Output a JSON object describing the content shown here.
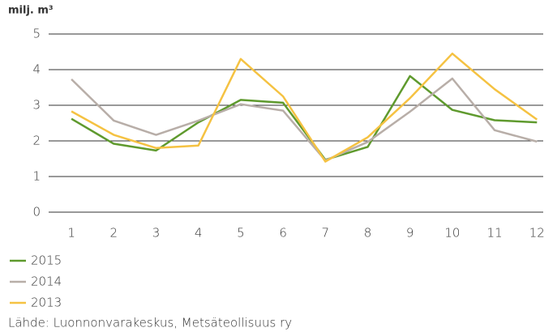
{
  "chart_data": {
    "type": "line",
    "ylabel": "milj. m³",
    "categories": [
      "1",
      "2",
      "3",
      "4",
      "5",
      "6",
      "7",
      "8",
      "9",
      "10",
      "11",
      "12"
    ],
    "series": [
      {
        "name": "2015",
        "color": "#5f9a2e",
        "values": [
          2.62,
          1.92,
          1.73,
          2.52,
          3.15,
          3.07,
          1.47,
          1.83,
          3.82,
          2.87,
          2.58,
          2.52
        ]
      },
      {
        "name": "2014",
        "color": "#b8aea8",
        "values": [
          3.73,
          2.57,
          2.17,
          2.57,
          3.03,
          2.85,
          1.45,
          1.97,
          2.82,
          3.75,
          2.3,
          1.98
        ]
      },
      {
        "name": "2013",
        "color": "#f5c242",
        "values": [
          2.83,
          2.17,
          1.8,
          1.87,
          4.3,
          3.25,
          1.42,
          2.1,
          3.2,
          4.45,
          3.45,
          2.6
        ]
      }
    ],
    "ylim": [
      0,
      5
    ],
    "yticks": [
      0,
      1,
      2,
      3,
      4,
      5
    ],
    "grid": true,
    "source": "Lähde: Luonnonvarakeskus, Metsäteollisuus ry"
  }
}
